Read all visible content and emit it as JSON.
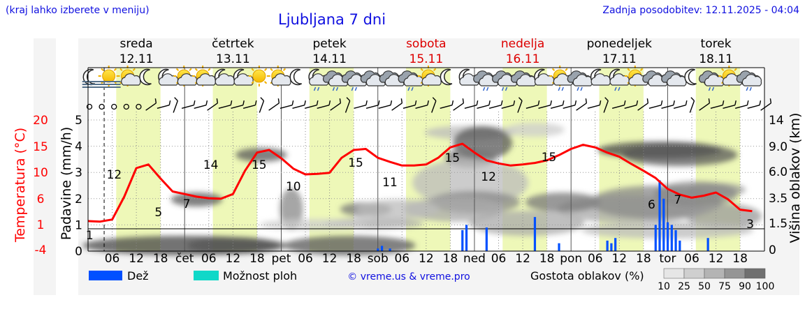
{
  "header": {
    "hint": "(kraj lahko izberete v meniju)",
    "title": "Ljubljana 7 dni",
    "updated": "Zadnja posodobitev: 12.11.2025 - 04:04"
  },
  "days": [
    {
      "name": "sreda",
      "date": "12.11",
      "weekend": false
    },
    {
      "name": "četrtek",
      "date": "13.11",
      "weekend": false
    },
    {
      "name": "petek",
      "date": "14.11",
      "weekend": false
    },
    {
      "name": "sobota",
      "date": "15.11",
      "weekend": true
    },
    {
      "name": "nedelja",
      "date": "16.11",
      "weekend": true
    },
    {
      "name": "ponedeljek",
      "date": "17.11",
      "weekend": false
    },
    {
      "name": "torek",
      "date": "18.11",
      "weekend": false
    }
  ],
  "colors": {
    "temperature": "#ff0000",
    "rain": "#0050ff",
    "shower": "#10d8c8",
    "weekend_text": "#dd0000",
    "daylight": "#eef8b8",
    "accent": "#1010e0"
  },
  "chart_data": {
    "type": "line",
    "x_tick_labels": [
      "06",
      "12",
      "18",
      "čet",
      "06",
      "12",
      "18",
      "pet",
      "06",
      "12",
      "18",
      "sob",
      "06",
      "12",
      "18",
      "ned",
      "06",
      "12",
      "18",
      "pon",
      "06",
      "12",
      "18",
      "tor",
      "06",
      "12",
      "18"
    ],
    "y_left_precip": {
      "label": "Padavine (mm/h)",
      "ticks": [
        "0",
        "1",
        "2",
        "3",
        "4",
        "5"
      ],
      "range": [
        0,
        5
      ]
    },
    "y_left_temp": {
      "label": "Temperatura (°C)",
      "ticks": [
        "-4",
        "1",
        "6",
        "10",
        "15",
        "20"
      ]
    },
    "y_right_cloud": {
      "label": "Višina oblakov (km)",
      "ticks": [
        "0",
        "1.5",
        "3.5",
        "6.0",
        "9.0",
        "14"
      ]
    },
    "x_hours": [
      0,
      3,
      6,
      9,
      12,
      15,
      18,
      21,
      24,
      27,
      30,
      33,
      36,
      39,
      42,
      45,
      48,
      51,
      54,
      57,
      60,
      63,
      66,
      69,
      72,
      75,
      78,
      81,
      84,
      87,
      90,
      93,
      96,
      99,
      102,
      105,
      108,
      111,
      114,
      117,
      120,
      123,
      126,
      129,
      132,
      135,
      138,
      141,
      144,
      147,
      150,
      153,
      156,
      159,
      162,
      165
    ],
    "temperature_series": {
      "name": "Temperatura",
      "x_hours": [
        0,
        3,
        6,
        9,
        12,
        15,
        18,
        21,
        24,
        27,
        30,
        33,
        36,
        39,
        42,
        45,
        48,
        51,
        54,
        57,
        60,
        63,
        66,
        69,
        72,
        75,
        78,
        81,
        84,
        87,
        90,
        93,
        96,
        99,
        102,
        105,
        108,
        111,
        114,
        117,
        120,
        123,
        126,
        129,
        132,
        135,
        138,
        141,
        144,
        147,
        150,
        153,
        156,
        159,
        162,
        165
      ],
      "values": [
        1.3,
        1.2,
        1.6,
        6,
        11.5,
        12.2,
        9.5,
        7,
        6.5,
        6,
        5.7,
        5.6,
        6.5,
        11,
        14.5,
        15,
        13.4,
        11.4,
        10.3,
        10.4,
        10.6,
        13.5,
        15,
        15.2,
        13.5,
        12.7,
        12,
        12,
        12.2,
        13.5,
        15.5,
        16.2,
        14.5,
        13,
        12.4,
        12,
        12.2,
        12.5,
        13,
        14,
        15.2,
        16,
        15.5,
        14.5,
        13.7,
        12.3,
        11,
        9.6,
        7.5,
        6.4,
        5.8,
        6.2,
        6.8,
        5.5,
        3.5,
        3.2
      ]
    },
    "temperature_labels": [
      {
        "x": 0.4,
        "text": "1"
      },
      {
        "x": 6.5,
        "text": "12"
      },
      {
        "x": 17.5,
        "text": "5"
      },
      {
        "x": 24.5,
        "text": "7"
      },
      {
        "x": 30.5,
        "text": "14"
      },
      {
        "x": 42.5,
        "text": "15"
      },
      {
        "x": 51,
        "text": "10"
      },
      {
        "x": 66.5,
        "text": "15"
      },
      {
        "x": 75,
        "text": "11"
      },
      {
        "x": 90.5,
        "text": "15"
      },
      {
        "x": 99.5,
        "text": "12"
      },
      {
        "x": 114.5,
        "text": "15"
      },
      {
        "x": 140,
        "text": "6"
      },
      {
        "x": 146.5,
        "text": "7"
      },
      {
        "x": 164.5,
        "text": "3"
      }
    ],
    "rain_series": {
      "name": "Dež",
      "bars": [
        {
          "x": 72,
          "v": 0.1
        },
        {
          "x": 73,
          "v": 0.2
        },
        {
          "x": 75,
          "v": 0.1
        },
        {
          "x": 93,
          "v": 0.8
        },
        {
          "x": 94,
          "v": 1.0
        },
        {
          "x": 99,
          "v": 0.9
        },
        {
          "x": 111,
          "v": 1.3
        },
        {
          "x": 117,
          "v": 0.3
        },
        {
          "x": 129,
          "v": 0.4
        },
        {
          "x": 130,
          "v": 0.3
        },
        {
          "x": 131,
          "v": 0.5
        },
        {
          "x": 141,
          "v": 1.0
        },
        {
          "x": 142,
          "v": 2.7
        },
        {
          "x": 143,
          "v": 2.0
        },
        {
          "x": 144,
          "v": 1.1
        },
        {
          "x": 145,
          "v": 1.0
        },
        {
          "x": 146,
          "v": 0.8
        },
        {
          "x": 147,
          "v": 0.4
        },
        {
          "x": 154,
          "v": 0.5
        }
      ]
    },
    "cloud_density_legend": {
      "label": "Gostota oblakov (%)",
      "ticks": [
        "10",
        "25",
        "50",
        "75",
        "90",
        "100"
      ]
    },
    "legend": {
      "rain": "Dež",
      "shower": "Možnost ploh",
      "placement": "bottom"
    },
    "copyright": "© vreme.us & vreme.pro"
  }
}
